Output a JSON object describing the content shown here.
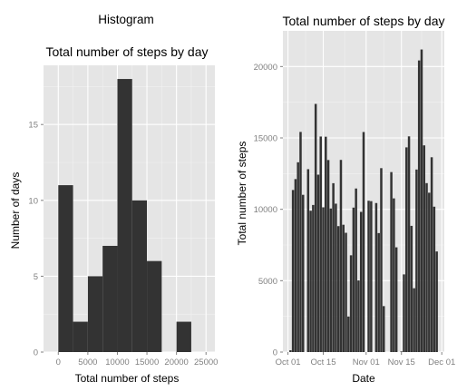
{
  "page_title": "Histogram",
  "colors": {
    "panel_bg": "#e5e5e5",
    "grid_major": "#ffffff",
    "grid_minor": "#f2f2f2",
    "bar": "#333333",
    "tick_text": "#808080",
    "axis_title": "#000000"
  },
  "chart_data": [
    {
      "type": "bar",
      "subtype": "histogram",
      "title": "Total number of steps by day",
      "xlabel": "Total number of steps",
      "ylabel": "Number of days",
      "xlim": [
        -2500,
        26500
      ],
      "ylim": [
        0,
        18.9
      ],
      "grid": true,
      "x_ticks": [
        0,
        5000,
        10000,
        15000,
        20000,
        25000
      ],
      "x_tick_labels": [
        "0",
        "5000",
        "10000",
        "15000",
        "20000",
        "25000"
      ],
      "y_ticks": [
        0,
        5,
        10,
        15
      ],
      "y_tick_labels": [
        "0",
        "5",
        "10",
        "15"
      ],
      "bins": [
        {
          "x0": 0,
          "x1": 2500,
          "count": 11
        },
        {
          "x0": 2500,
          "x1": 5000,
          "count": 2
        },
        {
          "x0": 5000,
          "x1": 7500,
          "count": 5
        },
        {
          "x0": 7500,
          "x1": 10000,
          "count": 7
        },
        {
          "x0": 10000,
          "x1": 12500,
          "count": 18
        },
        {
          "x0": 12500,
          "x1": 15000,
          "count": 10
        },
        {
          "x0": 15000,
          "x1": 17500,
          "count": 6
        },
        {
          "x0": 17500,
          "x1": 20000,
          "count": 0
        },
        {
          "x0": 20000,
          "x1": 22500,
          "count": 2
        }
      ]
    },
    {
      "type": "bar",
      "title": "Total number of steps by day",
      "xlabel": "Date",
      "ylabel": "Total number of steps",
      "xlim": [
        "2012-09-29",
        "2012-12-02"
      ],
      "ylim": [
        0,
        22500
      ],
      "grid": true,
      "x_ticks": [
        "2012-10-01",
        "2012-10-15",
        "2012-11-01",
        "2012-11-15",
        "2012-12-01"
      ],
      "x_tick_labels": [
        "Oct 01",
        "Oct 15",
        "Nov 01",
        "Nov 15",
        "Dec 01"
      ],
      "y_ticks": [
        0,
        5000,
        10000,
        15000,
        20000
      ],
      "y_tick_labels": [
        "0",
        "5000",
        "10000",
        "15000",
        "20000"
      ],
      "dates": [
        "2012-10-01",
        "2012-10-02",
        "2012-10-03",
        "2012-10-04",
        "2012-10-05",
        "2012-10-06",
        "2012-10-07",
        "2012-10-08",
        "2012-10-09",
        "2012-10-10",
        "2012-10-11",
        "2012-10-12",
        "2012-10-13",
        "2012-10-14",
        "2012-10-15",
        "2012-10-16",
        "2012-10-17",
        "2012-10-18",
        "2012-10-19",
        "2012-10-20",
        "2012-10-21",
        "2012-10-22",
        "2012-10-23",
        "2012-10-24",
        "2012-10-25",
        "2012-10-26",
        "2012-10-27",
        "2012-10-28",
        "2012-10-29",
        "2012-10-30",
        "2012-10-31",
        "2012-11-01",
        "2012-11-02",
        "2012-11-03",
        "2012-11-04",
        "2012-11-05",
        "2012-11-06",
        "2012-11-07",
        "2012-11-08",
        "2012-11-09",
        "2012-11-10",
        "2012-11-11",
        "2012-11-12",
        "2012-11-13",
        "2012-11-14",
        "2012-11-15",
        "2012-11-16",
        "2012-11-17",
        "2012-11-18",
        "2012-11-19",
        "2012-11-20",
        "2012-11-21",
        "2012-11-22",
        "2012-11-23",
        "2012-11-24",
        "2012-11-25",
        "2012-11-26",
        "2012-11-27",
        "2012-11-28",
        "2012-11-29",
        "2012-11-30"
      ],
      "values": [
        0,
        126,
        11352,
        12116,
        13294,
        15420,
        11015,
        0,
        12811,
        9900,
        10304,
        17382,
        12426,
        15098,
        10139,
        15084,
        13452,
        10056,
        11829,
        10395,
        8821,
        13460,
        8918,
        8355,
        2492,
        6778,
        10119,
        11458,
        5018,
        9819,
        15414,
        0,
        10600,
        10571,
        0,
        10439,
        8334,
        12883,
        3219,
        0,
        0,
        12608,
        10765,
        7336,
        0,
        41,
        5441,
        14339,
        15110,
        8841,
        4472,
        12787,
        20427,
        21194,
        14478,
        11834,
        11162,
        13646,
        10183,
        7047,
        0
      ]
    }
  ]
}
